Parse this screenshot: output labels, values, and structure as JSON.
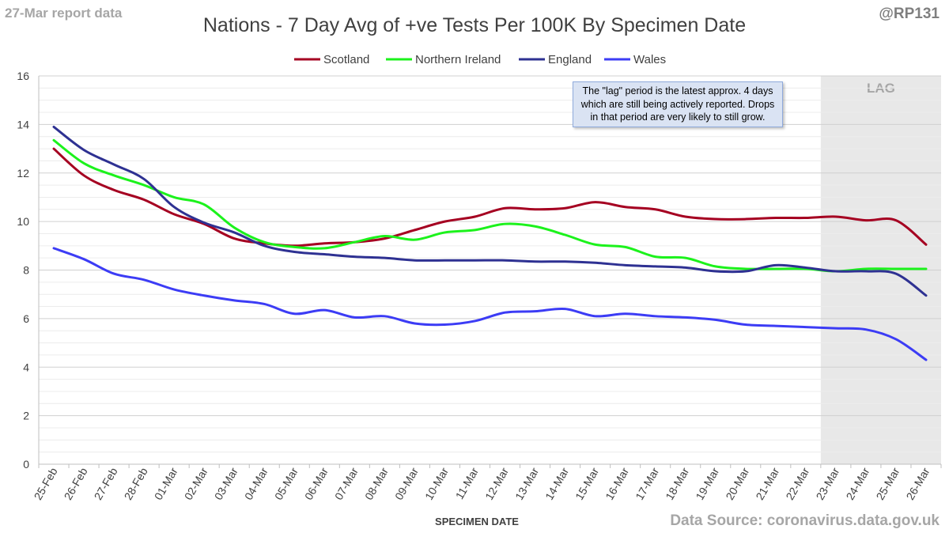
{
  "header": {
    "report_label": "27-Mar report data",
    "handle": "@RP131",
    "source": "Data Source: coronavirus.data.gov.uk"
  },
  "annotations": {
    "lag_label": "LAG",
    "note": "The \"lag\" period is the latest approx. 4 days which are still being actively reported. Drops in that period are very likely to still grow."
  },
  "colors": {
    "Scotland": "#a50021",
    "Northern Ireland": "#1cf21c",
    "England": "#2e3192",
    "Wales": "#3c3cf5",
    "lag_shade": "#e8e8e8"
  },
  "chart_data": {
    "type": "line",
    "title": "Nations - 7 Day Avg of +ve Tests Per 100K By Specimen Date",
    "xlabel": "SPECIMEN DATE",
    "ylabel": "",
    "ylim": [
      0,
      16
    ],
    "yticks": [
      0,
      2,
      4,
      6,
      8,
      10,
      12,
      14,
      16
    ],
    "grid": true,
    "legend_position": "top",
    "categories": [
      "25-Feb",
      "26-Feb",
      "27-Feb",
      "28-Feb",
      "01-Mar",
      "02-Mar",
      "03-Mar",
      "04-Mar",
      "05-Mar",
      "06-Mar",
      "07-Mar",
      "08-Mar",
      "09-Mar",
      "10-Mar",
      "11-Mar",
      "12-Mar",
      "13-Mar",
      "14-Mar",
      "15-Mar",
      "16-Mar",
      "17-Mar",
      "18-Mar",
      "19-Mar",
      "20-Mar",
      "21-Mar",
      "22-Mar",
      "23-Mar",
      "24-Mar",
      "25-Mar",
      "26-Mar"
    ],
    "lag_start": "23-Mar",
    "series": [
      {
        "name": "Scotland",
        "values": [
          13.0,
          11.9,
          11.3,
          10.9,
          10.3,
          9.9,
          9.3,
          9.1,
          9.0,
          9.1,
          9.15,
          9.3,
          9.65,
          10.0,
          10.2,
          10.55,
          10.5,
          10.55,
          10.8,
          10.6,
          10.5,
          10.2,
          10.1,
          10.1,
          10.15,
          10.15,
          10.2,
          10.05,
          10.05,
          9.05
        ]
      },
      {
        "name": "Northern Ireland",
        "values": [
          13.35,
          12.4,
          11.9,
          11.5,
          11.0,
          10.7,
          9.75,
          9.15,
          8.95,
          8.9,
          9.15,
          9.4,
          9.25,
          9.55,
          9.65,
          9.9,
          9.8,
          9.45,
          9.05,
          8.95,
          8.55,
          8.5,
          8.15,
          8.05,
          8.05,
          8.05,
          7.95,
          8.05,
          8.05,
          8.05
        ]
      },
      {
        "name": "England",
        "values": [
          13.9,
          12.95,
          12.35,
          11.75,
          10.6,
          9.95,
          9.55,
          9.0,
          8.75,
          8.65,
          8.55,
          8.5,
          8.4,
          8.4,
          8.4,
          8.4,
          8.35,
          8.35,
          8.3,
          8.2,
          8.15,
          8.1,
          7.95,
          7.95,
          8.2,
          8.1,
          7.95,
          7.95,
          7.85,
          6.95
        ]
      },
      {
        "name": "Wales",
        "values": [
          8.9,
          8.45,
          7.85,
          7.6,
          7.2,
          6.95,
          6.75,
          6.6,
          6.2,
          6.35,
          6.05,
          6.1,
          5.8,
          5.75,
          5.9,
          6.25,
          6.3,
          6.4,
          6.1,
          6.2,
          6.1,
          6.05,
          5.95,
          5.75,
          5.7,
          5.65,
          5.6,
          5.55,
          5.15,
          4.3
        ]
      }
    ]
  }
}
